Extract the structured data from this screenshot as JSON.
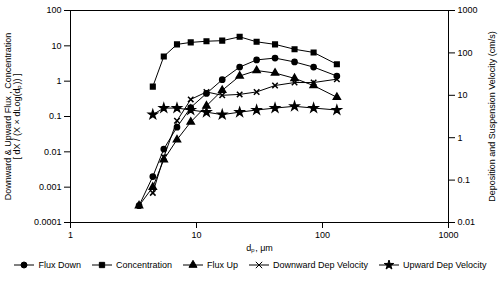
{
  "chart_data": {
    "type": "line",
    "log": true,
    "grid": false,
    "legend": "bottom",
    "xlabel": "dₚ, μm",
    "ylabel": "Downward & Upward Flux , Concentration\n[ dX / (X × dLog(dₚ)) ]",
    "y2label": "Deposition and Suspension Velocity (cm/s)",
    "xlim": [
      1,
      1000
    ],
    "xticks": [
      1,
      10,
      100,
      1000
    ],
    "ylim": [
      0.0001,
      100
    ],
    "yticks": [
      0.0001,
      0.001,
      0.01,
      0.1,
      1,
      10,
      100
    ],
    "y2lim": [
      0.01,
      1000
    ],
    "y2ticks": [
      0.01,
      0.1,
      1,
      10,
      100,
      1000
    ],
    "series": [
      {
        "name": "Flux Down",
        "color": "black",
        "marker": "circle",
        "x": [
          3.5,
          4.5,
          5.5,
          7,
          9,
          12,
          16,
          22,
          30,
          42,
          60,
          85,
          130
        ],
        "values": [
          0.0003,
          0.002,
          0.012,
          0.05,
          0.18,
          0.45,
          1.1,
          2.5,
          4.0,
          4.5,
          3.5,
          2.5,
          1.4
        ]
      },
      {
        "name": "Concentration",
        "color": "black",
        "marker": "square",
        "x": [
          4.5,
          5.5,
          7,
          9,
          12,
          16,
          22,
          30,
          42,
          60,
          85,
          130
        ],
        "values": [
          0.7,
          5.0,
          11.0,
          12.5,
          13.5,
          14.0,
          18.0,
          13.0,
          11.0,
          8.0,
          6.5,
          3.0
        ]
      },
      {
        "name": "Flux Up",
        "color": "black",
        "marker": "triangle",
        "x": [
          3.5,
          4.5,
          5.5,
          7,
          9,
          12,
          16,
          22,
          30,
          42,
          60,
          85,
          130
        ],
        "values": [
          0.0003,
          0.001,
          0.006,
          0.022,
          0.07,
          0.2,
          0.55,
          1.4,
          2.0,
          1.7,
          1.2,
          0.75,
          0.35
        ]
      },
      {
        "name": "Downward Dep Velocity",
        "color": "black",
        "marker": "x",
        "axis": "y2",
        "x": [
          4.5,
          5.5,
          7,
          9,
          12,
          16,
          22,
          30,
          42,
          60,
          85,
          130
        ],
        "values": [
          0.05,
          0.35,
          2.5,
          8.0,
          12.0,
          10.0,
          10.5,
          12.0,
          17.0,
          20.0,
          20.0,
          24.0
        ]
      },
      {
        "name": "Upward Dep Velocity",
        "color": "black",
        "marker": "star",
        "axis": "y2",
        "x": [
          4.5,
          5.5,
          7,
          9,
          12,
          16,
          22,
          30,
          42,
          60,
          85,
          130
        ],
        "values": [
          3.5,
          5.0,
          5.0,
          4.5,
          4.0,
          3.5,
          4.0,
          4.5,
          5.0,
          5.5,
          5.0,
          4.5
        ]
      }
    ]
  }
}
